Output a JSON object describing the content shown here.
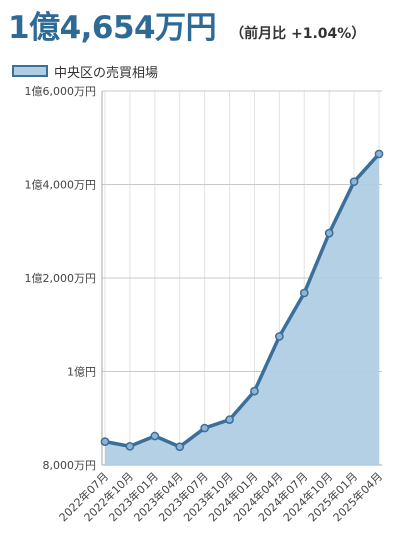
{
  "header": {
    "price": "1億4,654万円",
    "change": "（前月比 +1.04%）"
  },
  "chart_data": {
    "type": "area",
    "title": "",
    "xlabel": "",
    "ylabel": "",
    "legend": {
      "label": "中央区の売買相場",
      "placement": "top-left"
    },
    "categories": [
      "2022年07月",
      "2022年10月",
      "2023年01月",
      "2023年04月",
      "2023年07月",
      "2023年10月",
      "2024年01月",
      "2024年04月",
      "2024年07月",
      "2024年10月",
      "2025年01月",
      "2025年04月"
    ],
    "series": [
      {
        "name": "中央区の売買相場",
        "values": [
          8500,
          8400,
          8620,
          8390,
          8790,
          8970,
          9580,
          10750,
          11680,
          12960,
          14060,
          14654
        ]
      }
    ],
    "y_unit": "万円",
    "ylim": [
      8000,
      16000
    ],
    "y_ticks": [
      {
        "value": 8000,
        "label": "8,000万円"
      },
      {
        "value": 10000,
        "label": "1億円"
      },
      {
        "value": 12000,
        "label": "1億2,000万円"
      },
      {
        "value": 14000,
        "label": "1億4,000万円"
      },
      {
        "value": 16000,
        "label": "1億6,000万円"
      }
    ],
    "grid": true,
    "colors": {
      "line": "#3a6f9a",
      "fill": "#b0cde4",
      "marker_fill": "#8fb3d4"
    }
  }
}
